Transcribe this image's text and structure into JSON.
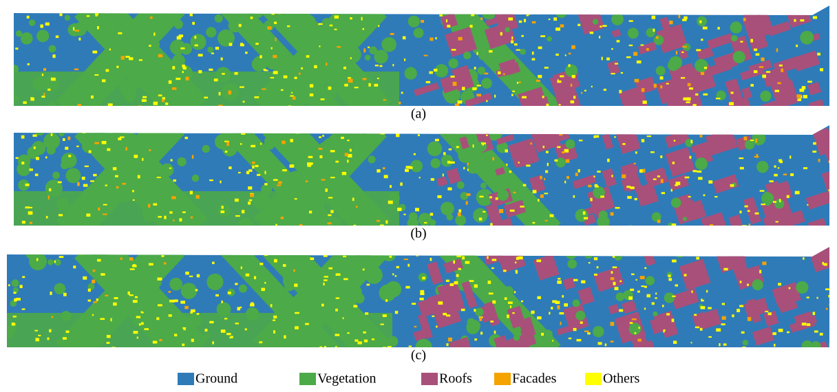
{
  "panels": [
    {
      "label": "(a)"
    },
    {
      "label": "(b)"
    },
    {
      "label": "(c)"
    }
  ],
  "legend": [
    {
      "name": "Ground",
      "color": "#2f7bb8"
    },
    {
      "name": "Vegetation",
      "color": "#4caa48"
    },
    {
      "name": "Roofs",
      "color": "#a8507a"
    },
    {
      "name": "Facades",
      "color": "#f5a300"
    },
    {
      "name": "Others",
      "color": "#ffff00"
    }
  ]
}
